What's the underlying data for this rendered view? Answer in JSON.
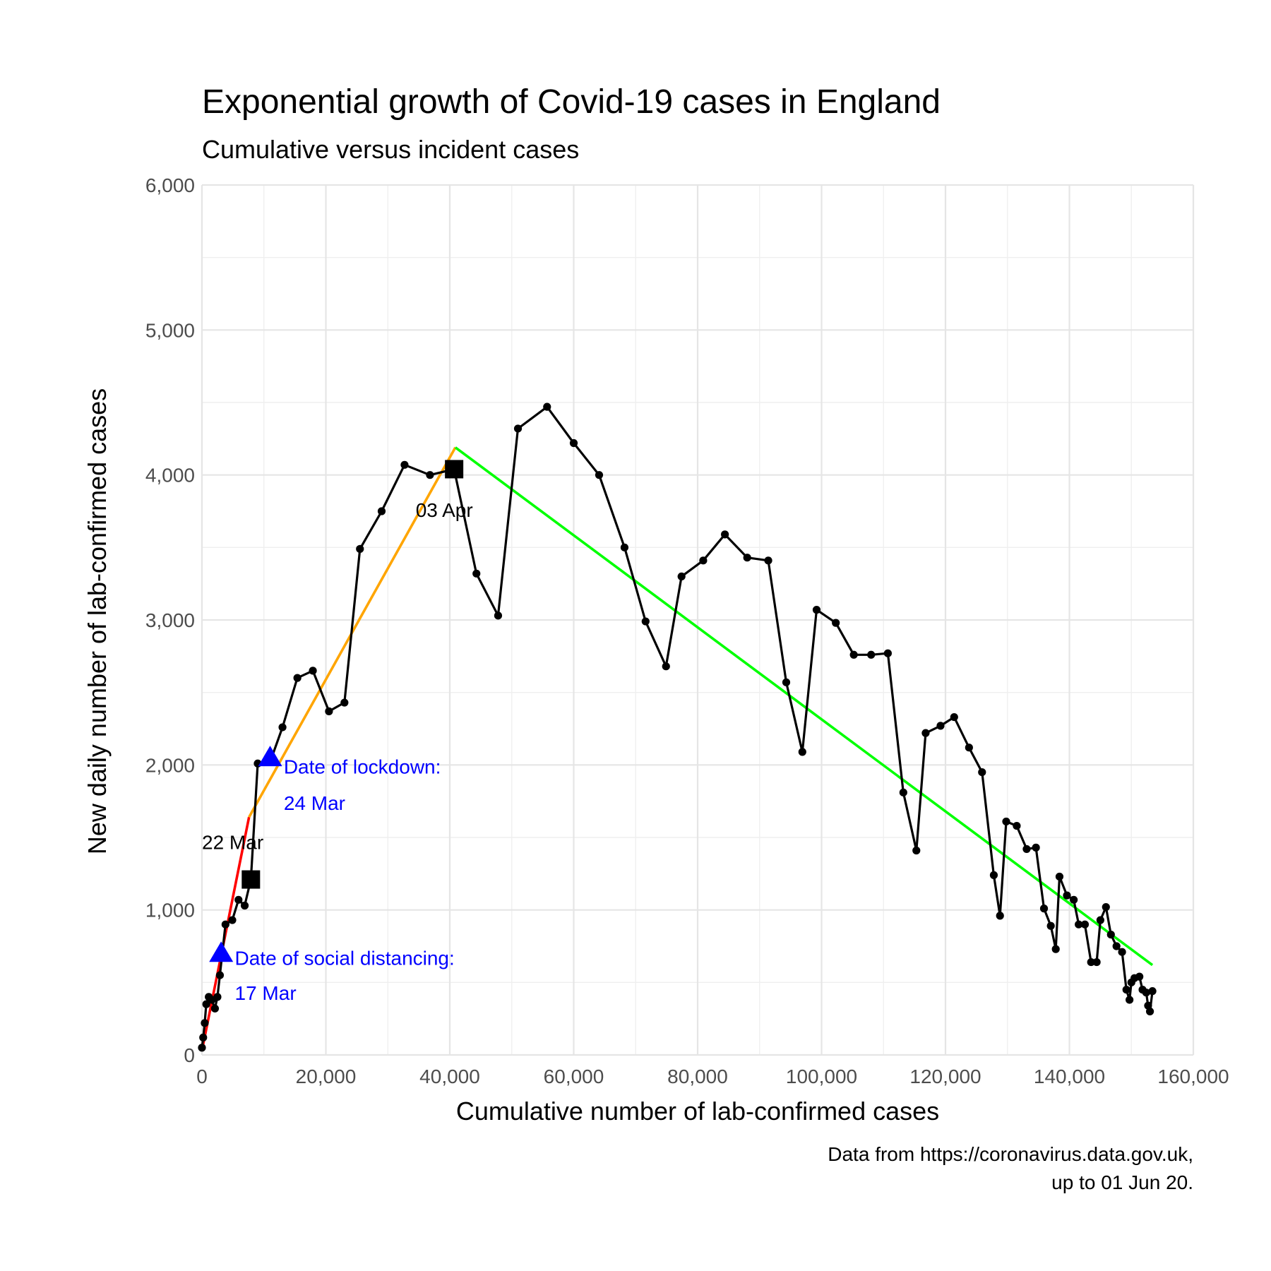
{
  "chart_data": {
    "type": "line",
    "title": "Exponential growth of Covid-19 cases in England",
    "subtitle": "Cumulative versus incident cases",
    "xlabel": "Cumulative number of lab-confirmed cases",
    "ylabel": "New daily number of lab-confirmed cases",
    "caption_lines": [
      "Data from https://coronavirus.data.gov.uk,",
      "up to 01 Jun 20."
    ],
    "xlim": [
      0,
      160000
    ],
    "ylim": [
      0,
      6000
    ],
    "x_ticks": [
      0,
      20000,
      40000,
      60000,
      80000,
      100000,
      120000,
      140000,
      160000
    ],
    "x_tick_labels": [
      "0",
      "20,000",
      "40,000",
      "60,000",
      "80,000",
      "100,000",
      "120,000",
      "140,000",
      "160,000"
    ],
    "y_ticks": [
      0,
      1000,
      2000,
      3000,
      4000,
      5000,
      6000
    ],
    "y_tick_labels": [
      "0",
      "1,000",
      "2,000",
      "3,000",
      "4,000",
      "5,000",
      "6,000"
    ],
    "grid": true,
    "series": [
      {
        "color": "#000000",
        "points": [
          [
            0,
            50
          ],
          [
            200,
            120
          ],
          [
            450,
            220
          ],
          [
            700,
            350
          ],
          [
            1100,
            400
          ],
          [
            1600,
            380
          ],
          [
            2100,
            320
          ],
          [
            2500,
            400
          ],
          [
            2900,
            550
          ],
          [
            3800,
            900
          ],
          [
            4900,
            930
          ],
          [
            5900,
            1070
          ],
          [
            6900,
            1030
          ],
          [
            7900,
            1210
          ],
          [
            9000,
            2010
          ],
          [
            11000,
            2020
          ],
          [
            13000,
            2260
          ],
          [
            15400,
            2600
          ],
          [
            17900,
            2650
          ],
          [
            20500,
            2370
          ],
          [
            23000,
            2430
          ],
          [
            25500,
            3490
          ],
          [
            29000,
            3750
          ],
          [
            32700,
            4070
          ],
          [
            36800,
            4000
          ],
          [
            40700,
            4040
          ],
          [
            44300,
            3320
          ],
          [
            47800,
            3030
          ],
          [
            51000,
            4320
          ],
          [
            55700,
            4470
          ],
          [
            60000,
            4220
          ],
          [
            64100,
            4000
          ],
          [
            68200,
            3500
          ],
          [
            71600,
            2990
          ],
          [
            74900,
            2680
          ],
          [
            77400,
            3300
          ],
          [
            80900,
            3410
          ],
          [
            84400,
            3590
          ],
          [
            88000,
            3430
          ],
          [
            91400,
            3410
          ],
          [
            94300,
            2570
          ],
          [
            96900,
            2090
          ],
          [
            99200,
            3070
          ],
          [
            102300,
            2980
          ],
          [
            105200,
            2760
          ],
          [
            108000,
            2760
          ],
          [
            110700,
            2770
          ],
          [
            113200,
            1810
          ],
          [
            115300,
            1410
          ],
          [
            116800,
            2220
          ],
          [
            119200,
            2270
          ],
          [
            121400,
            2330
          ],
          [
            123800,
            2120
          ],
          [
            125900,
            1950
          ],
          [
            127800,
            1240
          ],
          [
            128800,
            960
          ],
          [
            129800,
            1610
          ],
          [
            131500,
            1580
          ],
          [
            133100,
            1420
          ],
          [
            134600,
            1430
          ],
          [
            135900,
            1010
          ],
          [
            137000,
            890
          ],
          [
            137800,
            730
          ],
          [
            138400,
            1230
          ],
          [
            139600,
            1100
          ],
          [
            140700,
            1070
          ],
          [
            141500,
            900
          ],
          [
            142500,
            900
          ],
          [
            143500,
            640
          ],
          [
            144400,
            640
          ],
          [
            145000,
            930
          ],
          [
            145900,
            1020
          ],
          [
            146700,
            830
          ],
          [
            147600,
            750
          ],
          [
            148500,
            710
          ],
          [
            149200,
            450
          ],
          [
            149700,
            380
          ],
          [
            150000,
            500
          ],
          [
            150500,
            530
          ],
          [
            151300,
            540
          ],
          [
            151800,
            450
          ],
          [
            152400,
            430
          ],
          [
            152700,
            340
          ],
          [
            153000,
            300
          ],
          [
            153400,
            440
          ]
        ]
      }
    ],
    "fit_lines": [
      {
        "color": "#ff0000",
        "points": [
          [
            0,
            30
          ],
          [
            7600,
            1640
          ]
        ]
      },
      {
        "color": "#ffa500",
        "points": [
          [
            7600,
            1640
          ],
          [
            40900,
            4190
          ]
        ]
      },
      {
        "color": "#00ff00",
        "points": [
          [
            40900,
            4190
          ],
          [
            153400,
            620
          ]
        ]
      }
    ],
    "square_markers": [
      [
        7900,
        1210
      ],
      [
        40700,
        4040
      ]
    ],
    "triangle_markers": [
      [
        3100,
        700
      ],
      [
        11000,
        2050
      ]
    ],
    "annotations": [
      {
        "text": "22 Mar",
        "x": 0,
        "y": 1420,
        "color": "black"
      },
      {
        "text": "03 Apr",
        "x": 34500,
        "y": 3710,
        "color": "black"
      },
      {
        "text": "Date of social distancing:",
        "x": 5300,
        "y": 620,
        "color": "blue"
      },
      {
        "text": "17 Mar",
        "x": 5300,
        "y": 380,
        "color": "blue"
      },
      {
        "text": "Date of lockdown:",
        "x": 13200,
        "y": 1940,
        "color": "blue"
      },
      {
        "text": "24 Mar",
        "x": 13200,
        "y": 1690,
        "color": "blue"
      }
    ]
  }
}
